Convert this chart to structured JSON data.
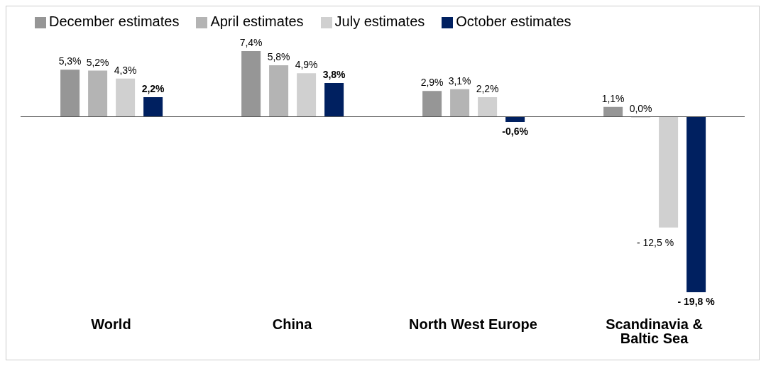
{
  "chart_data": {
    "type": "bar",
    "categories": [
      "World",
      "China",
      "North West Europe",
      "Scandinavia & Baltic Sea"
    ],
    "series": [
      {
        "name": "December estimates",
        "color": "#969696",
        "values": [
          5.3,
          7.4,
          2.9,
          1.1
        ],
        "value_labels": [
          "5,3%",
          "7,4%",
          "2,9%",
          "1,1%"
        ]
      },
      {
        "name": "April estimates",
        "color": "#b4b4b4",
        "values": [
          5.2,
          5.8,
          3.1,
          0.0
        ],
        "value_labels": [
          "5,2%",
          "5,8%",
          "3,1%",
          "0,0%"
        ]
      },
      {
        "name": "July estimates",
        "color": "#d0d0d0",
        "values": [
          4.3,
          4.9,
          2.2,
          -12.5
        ],
        "value_labels": [
          "4,3%",
          "4,9%",
          "2,2%",
          "- 12,5 %"
        ]
      },
      {
        "name": "October estimates",
        "color": "#002060",
        "values": [
          2.2,
          3.8,
          -0.6,
          -19.8
        ],
        "value_labels": [
          "2,2%",
          "3,8%",
          "-0,6%",
          "- 19,8 %"
        ]
      }
    ],
    "legend": "top left",
    "grid": false
  }
}
